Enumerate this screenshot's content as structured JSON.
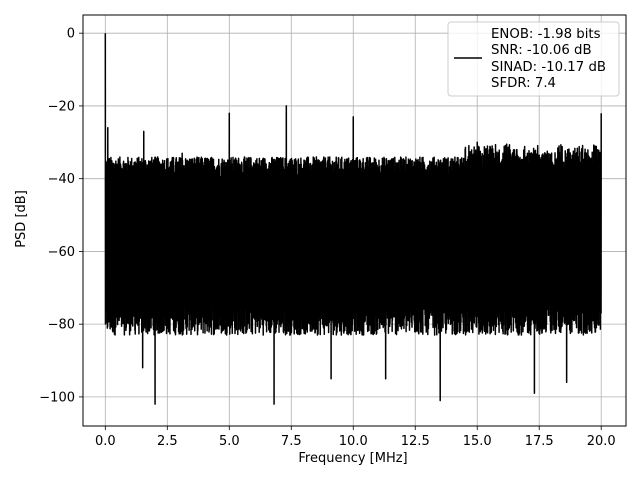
{
  "chart_data": {
    "type": "line",
    "title": "",
    "xlabel": "Frequency [MHz]",
    "ylabel": "PSD [dB]",
    "xlim": [
      -0.9,
      21.0
    ],
    "ylim": [
      -108,
      5
    ],
    "grid": true,
    "x_ticks": [
      0.0,
      2.5,
      5.0,
      7.5,
      10.0,
      12.5,
      15.0,
      17.5,
      20.0
    ],
    "x_tick_labels": [
      "0.0",
      "2.5",
      "5.0",
      "7.5",
      "10.0",
      "12.5",
      "15.0",
      "17.5",
      "20.0"
    ],
    "y_ticks": [
      0,
      -20,
      -40,
      -60,
      -80,
      -100
    ],
    "y_tick_labels": [
      "0",
      "−20",
      "−40",
      "−60",
      "−80",
      "−100"
    ],
    "legend": {
      "placement": "top-right",
      "entries": [
        "ENOB: -1.98 bits",
        "SNR: -10.06 dB",
        "SINAD: -10.17 dB",
        "SFDR: 7.4"
      ]
    },
    "series": [
      {
        "color": "#000000",
        "x_range": [
          0.0,
          20.0
        ],
        "noise_floor_upper_db": -37,
        "noise_floor_lower_db": -78,
        "spurs": [
          {
            "x": 0.0,
            "y": 0
          },
          {
            "x": 0.1,
            "y": -26
          },
          {
            "x": 1.55,
            "y": -27
          },
          {
            "x": 3.1,
            "y": -33
          },
          {
            "x": 5.0,
            "y": -22
          },
          {
            "x": 7.3,
            "y": -20
          },
          {
            "x": 10.0,
            "y": -23
          },
          {
            "x": 15.0,
            "y": -30
          },
          {
            "x": 15.6,
            "y": -31
          },
          {
            "x": 16.6,
            "y": -32
          },
          {
            "x": 18.3,
            "y": -31
          },
          {
            "x": 20.0,
            "y": -22
          }
        ],
        "dips": [
          {
            "x": 1.5,
            "y": -92
          },
          {
            "x": 2.0,
            "y": -102
          },
          {
            "x": 6.8,
            "y": -102
          },
          {
            "x": 9.1,
            "y": -95
          },
          {
            "x": 11.3,
            "y": -95
          },
          {
            "x": 13.5,
            "y": -101
          },
          {
            "x": 17.3,
            "y": -99
          },
          {
            "x": 18.6,
            "y": -96
          }
        ]
      }
    ]
  }
}
